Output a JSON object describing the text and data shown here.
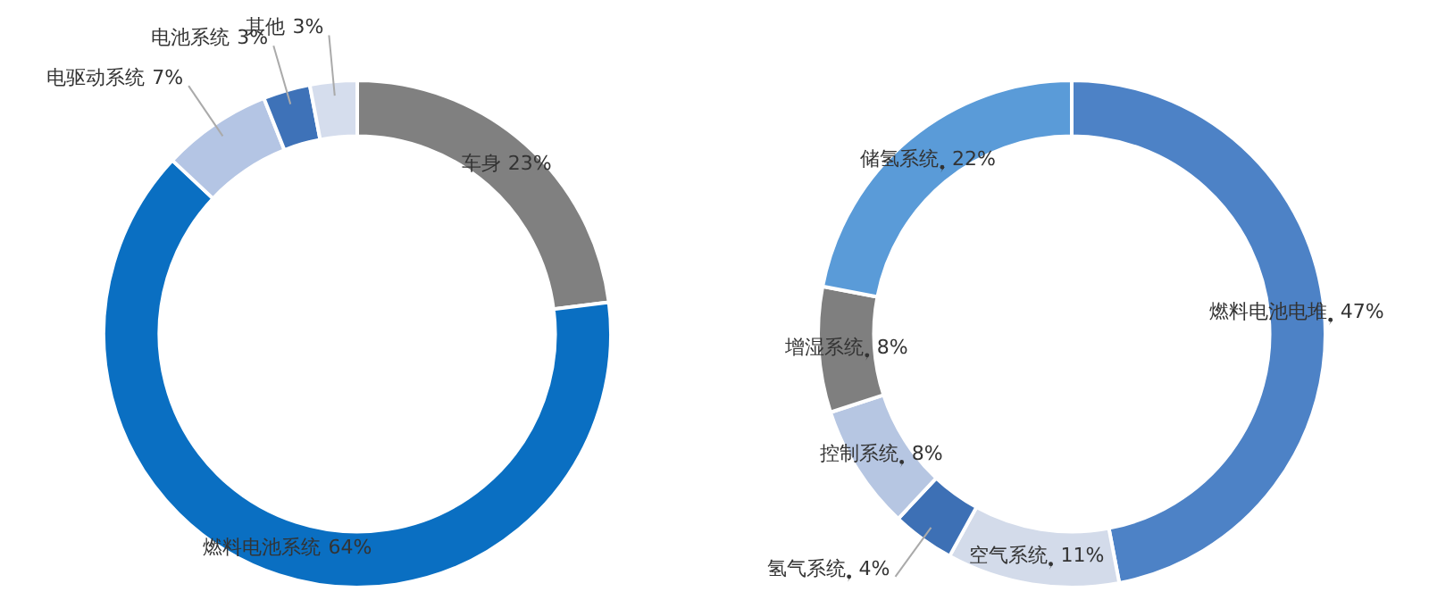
{
  "chart_data": [
    {
      "type": "donut",
      "categories": [
        "车身",
        "燃料电池系统",
        "电驱动系统",
        "电池系统",
        "其他"
      ],
      "values": [
        23,
        64,
        7,
        3,
        3
      ],
      "colors": [
        "#808080",
        "#0a6fc2",
        "#b4c5e4",
        "#3e72b8",
        "#d5dded"
      ],
      "value_labels": [
        "23%",
        "64%",
        "7%",
        "3%",
        "3%"
      ]
    },
    {
      "type": "donut",
      "categories": [
        "燃料电池电堆",
        "空气系统",
        "氢气系统",
        "控制系统",
        "增湿系统",
        "储氢系统"
      ],
      "values": [
        47,
        11,
        4,
        8,
        8,
        22
      ],
      "colors": [
        "#4d82c6",
        "#d3dbea",
        "#3d70b5",
        "#b6c6e2",
        "#7f7f7f",
        "#5a9bd8"
      ],
      "value_labels": [
        "47%",
        "11%",
        "4%",
        "8%",
        "8%",
        "22%"
      ]
    }
  ]
}
